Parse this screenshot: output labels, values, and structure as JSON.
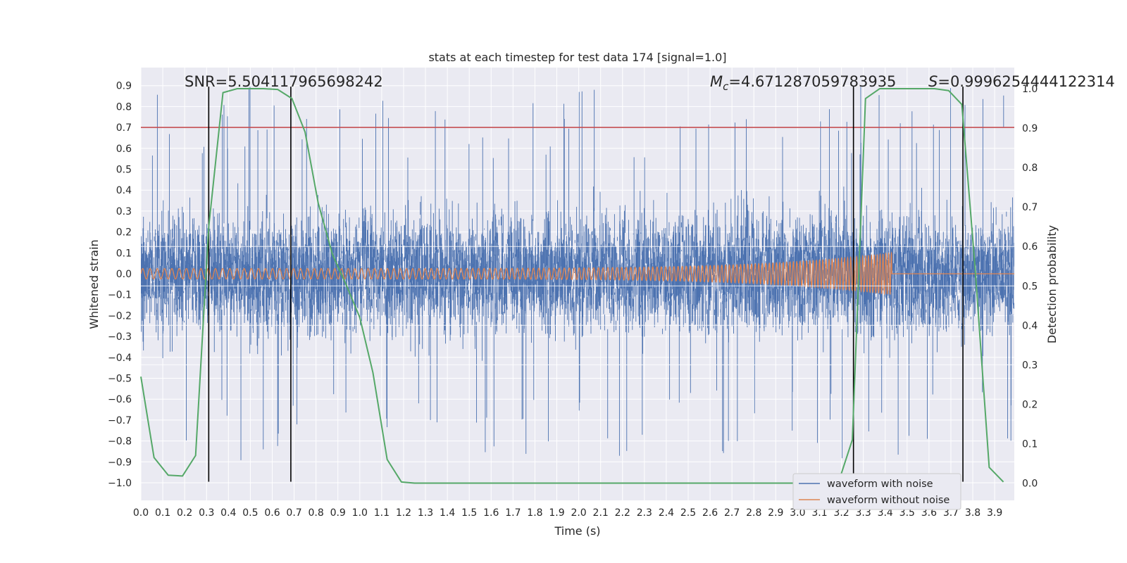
{
  "chart_data": {
    "type": "line",
    "title": "stats at each timestep for test data 174 [signal=1.0]",
    "xlabel": "Time (s)",
    "ylabel": "Whitened strain",
    "ylabel_right": "Detection probability",
    "xlim": [
      0.0,
      4.0
    ],
    "ylim": [
      -1.09,
      0.98
    ],
    "ylim_right": [
      -0.05,
      1.03
    ],
    "grid": true,
    "legend_position": "lower-right",
    "colors": {
      "noisy": "#4c72b0",
      "clean": "#dd8452",
      "probability": "#55a868",
      "threshold": "#c44e52",
      "markers": "#000000",
      "background": "#eaeaf2"
    },
    "x_ticks": [
      "0.0",
      "0.1",
      "0.2",
      "0.3",
      "0.4",
      "0.5",
      "0.6",
      "0.7",
      "0.8",
      "0.9",
      "1.0",
      "1.1",
      "1.2",
      "1.3",
      "1.4",
      "1.5",
      "1.6",
      "1.7",
      "1.8",
      "1.9",
      "2.0",
      "2.1",
      "2.2",
      "2.3",
      "2.4",
      "2.5",
      "2.6",
      "2.7",
      "2.8",
      "2.9",
      "3.0",
      "3.1",
      "3.2",
      "3.3",
      "3.4",
      "3.5",
      "3.6",
      "3.7",
      "3.8",
      "3.9"
    ],
    "y_ticks": [
      "0.9",
      "0.8",
      "0.7",
      "0.6",
      "0.5",
      "0.4",
      "0.3",
      "0.2",
      "0.1",
      "0.0",
      "-0.1",
      "-0.2",
      "-0.3",
      "-0.4",
      "-0.5",
      "-0.6",
      "-0.7",
      "-0.8",
      "-0.9",
      "-1.0"
    ],
    "y_ticks_right": [
      "1.0",
      "0.9",
      "0.8",
      "0.7",
      "0.6",
      "0.5",
      "0.4",
      "0.3",
      "0.2",
      "0.1",
      "0.0"
    ],
    "annotations": {
      "snr": "SNR=5.504117965698242",
      "mc_symbol": "M",
      "mc_sub": "c",
      "mc_value": "=4.671287059783935",
      "s_symbol": "S",
      "s_value": "=0.9996254444122314"
    },
    "threshold_y": 0.7,
    "vertical_markers": [
      0.31,
      0.685,
      3.255,
      3.755
    ],
    "series": [
      {
        "name": "waveform with noise",
        "description": "whitened noisy strain, dense noise roughly spanning -1.0 to 0.9"
      },
      {
        "name": "waveform without noise",
        "description": "chirp signal growing from amplitude ~0.02 to ~0.1, ending at t~3.43 s"
      },
      {
        "name": "detection probability",
        "axis": "right",
        "x": [
          0.0,
          0.06,
          0.125,
          0.19,
          0.25,
          0.31,
          0.375,
          0.44,
          0.5,
          0.56,
          0.625,
          0.69,
          0.75,
          0.81,
          0.875,
          0.94,
          1.0,
          1.06,
          1.125,
          1.19,
          1.25,
          1.31,
          3.0,
          3.06,
          3.125,
          3.19,
          3.25,
          3.31,
          3.375,
          3.44,
          3.5,
          3.56,
          3.625,
          3.69,
          3.75,
          3.81,
          3.875,
          3.94
        ],
        "y": [
          0.27,
          0.065,
          0.02,
          0.018,
          0.07,
          0.65,
          0.99,
          1.0,
          1.0,
          1.0,
          0.998,
          0.975,
          0.89,
          0.71,
          0.58,
          0.5,
          0.42,
          0.28,
          0.06,
          0.003,
          0.0,
          0.0,
          0.0,
          0.0,
          0.0,
          0.008,
          0.11,
          0.975,
          1.0,
          1.0,
          1.0,
          1.0,
          1.0,
          0.995,
          0.96,
          0.55,
          0.04,
          0.003
        ]
      }
    ]
  }
}
